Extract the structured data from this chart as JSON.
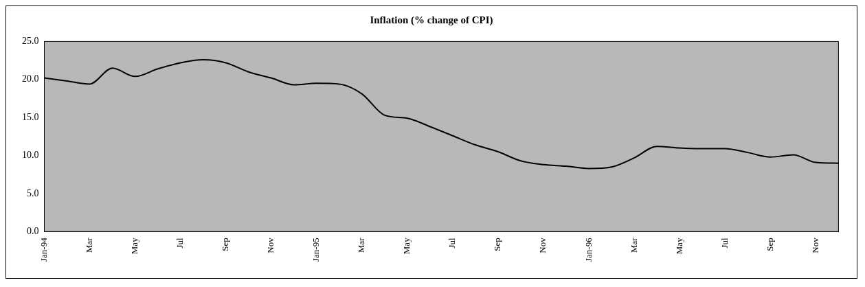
{
  "chart_data": {
    "type": "line",
    "title": "Inflation (% change of CPI)",
    "categories": [
      "Jan-94",
      null,
      "Mar",
      null,
      "May",
      null,
      "Jul",
      null,
      "Sep",
      null,
      "Nov",
      null,
      "Jan-95",
      null,
      "Mar",
      null,
      "May",
      null,
      "Jul",
      null,
      "Sep",
      null,
      "Nov",
      null,
      "Jan-96",
      null,
      "Mar",
      null,
      "May",
      null,
      "Jul",
      null,
      "Sep",
      null,
      "Nov",
      null
    ],
    "values": [
      20.2,
      19.8,
      19.4,
      21.5,
      20.4,
      21.4,
      22.2,
      22.6,
      22.2,
      21.0,
      20.2,
      19.3,
      19.5,
      19.4,
      18.1,
      15.3,
      14.9,
      13.8,
      12.6,
      11.4,
      10.5,
      9.3,
      8.8,
      8.6,
      8.3,
      8.5,
      9.7,
      11.2,
      11.0,
      10.9,
      10.9,
      10.4,
      9.8,
      10.1,
      9.1,
      9.0
    ],
    "color": "#000000",
    "ylim": [
      0,
      25
    ],
    "yticks": [
      {
        "value": 0,
        "label": "0.0"
      },
      {
        "value": 5,
        "label": "5.0"
      },
      {
        "value": 10,
        "label": "10.0"
      },
      {
        "value": 15,
        "label": "15.0"
      },
      {
        "value": 20,
        "label": "20.0"
      },
      {
        "value": 25,
        "label": "25.0"
      }
    ],
    "grid": false,
    "legend": false,
    "marker": "none",
    "line_style": "solid"
  }
}
